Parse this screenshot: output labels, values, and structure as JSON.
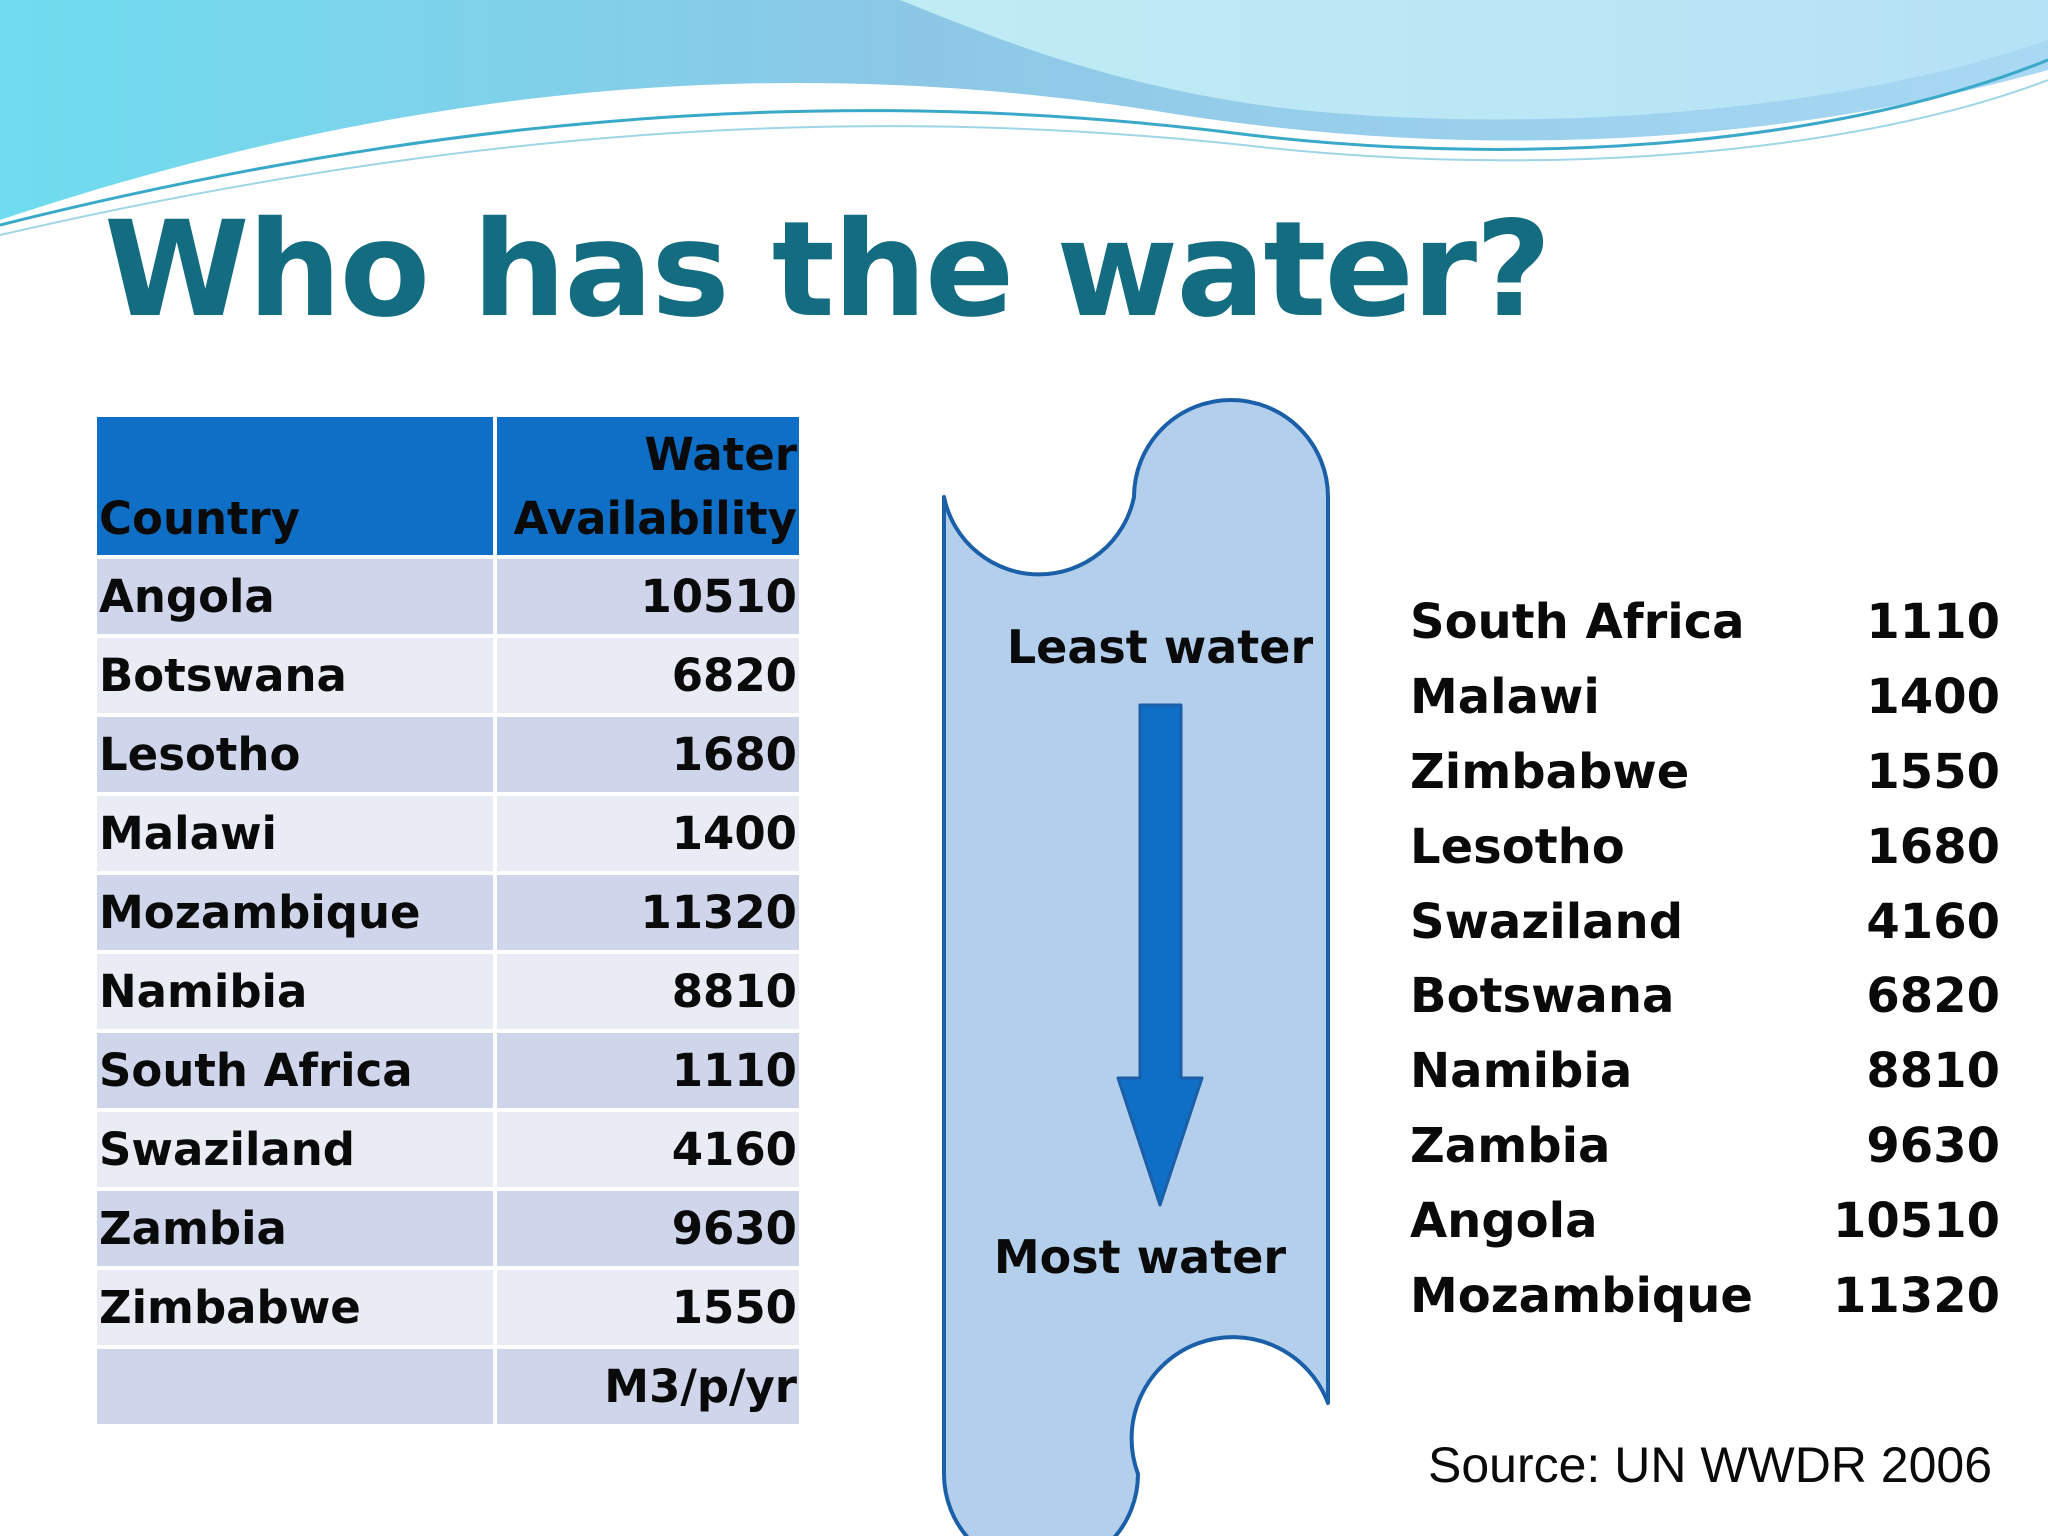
{
  "slide": {
    "title": "Who has the water?"
  },
  "table": {
    "headers": {
      "country": "Country",
      "water": "Water Availability"
    },
    "rows": [
      {
        "country": "Angola",
        "value": "10510"
      },
      {
        "country": "Botswana",
        "value": "6820"
      },
      {
        "country": "Lesotho",
        "value": "1680"
      },
      {
        "country": "Malawi",
        "value": "1400"
      },
      {
        "country": "Mozambique",
        "value": "11320"
      },
      {
        "country": "Namibia",
        "value": "8810"
      },
      {
        "country": "South Africa",
        "value": "1110"
      },
      {
        "country": "Swaziland",
        "value": "4160"
      },
      {
        "country": "Zambia",
        "value": "9630"
      },
      {
        "country": "Zimbabwe",
        "value": "1550"
      }
    ],
    "unit": "M3/p/yr"
  },
  "banner": {
    "top_label": "Least water",
    "bottom_label": "Most water"
  },
  "ranked": [
    {
      "country": "South Africa",
      "value": "1110"
    },
    {
      "country": "Malawi",
      "value": "1400"
    },
    {
      "country": "Zimbabwe",
      "value": "1550"
    },
    {
      "country": "Lesotho",
      "value": "1680"
    },
    {
      "country": "Swaziland",
      "value": "4160"
    },
    {
      "country": "Botswana",
      "value": "6820"
    },
    {
      "country": "Namibia",
      "value": "8810"
    },
    {
      "country": "Zambia",
      "value": "9630"
    },
    {
      "country": "Angola",
      "value": "10510"
    },
    {
      "country": "Mozambique",
      "value": "11320"
    }
  ],
  "source": "Source: UN WWDR 2006",
  "colors": {
    "title": "#136c80",
    "header_fill": "#0f6fc6",
    "row_odd": "#cfd5ea",
    "row_even": "#e9ebf5",
    "banner_fill": "#b3cfec",
    "banner_stroke": "#1a5fa8",
    "arrow_fill": "#0f6fc6"
  }
}
